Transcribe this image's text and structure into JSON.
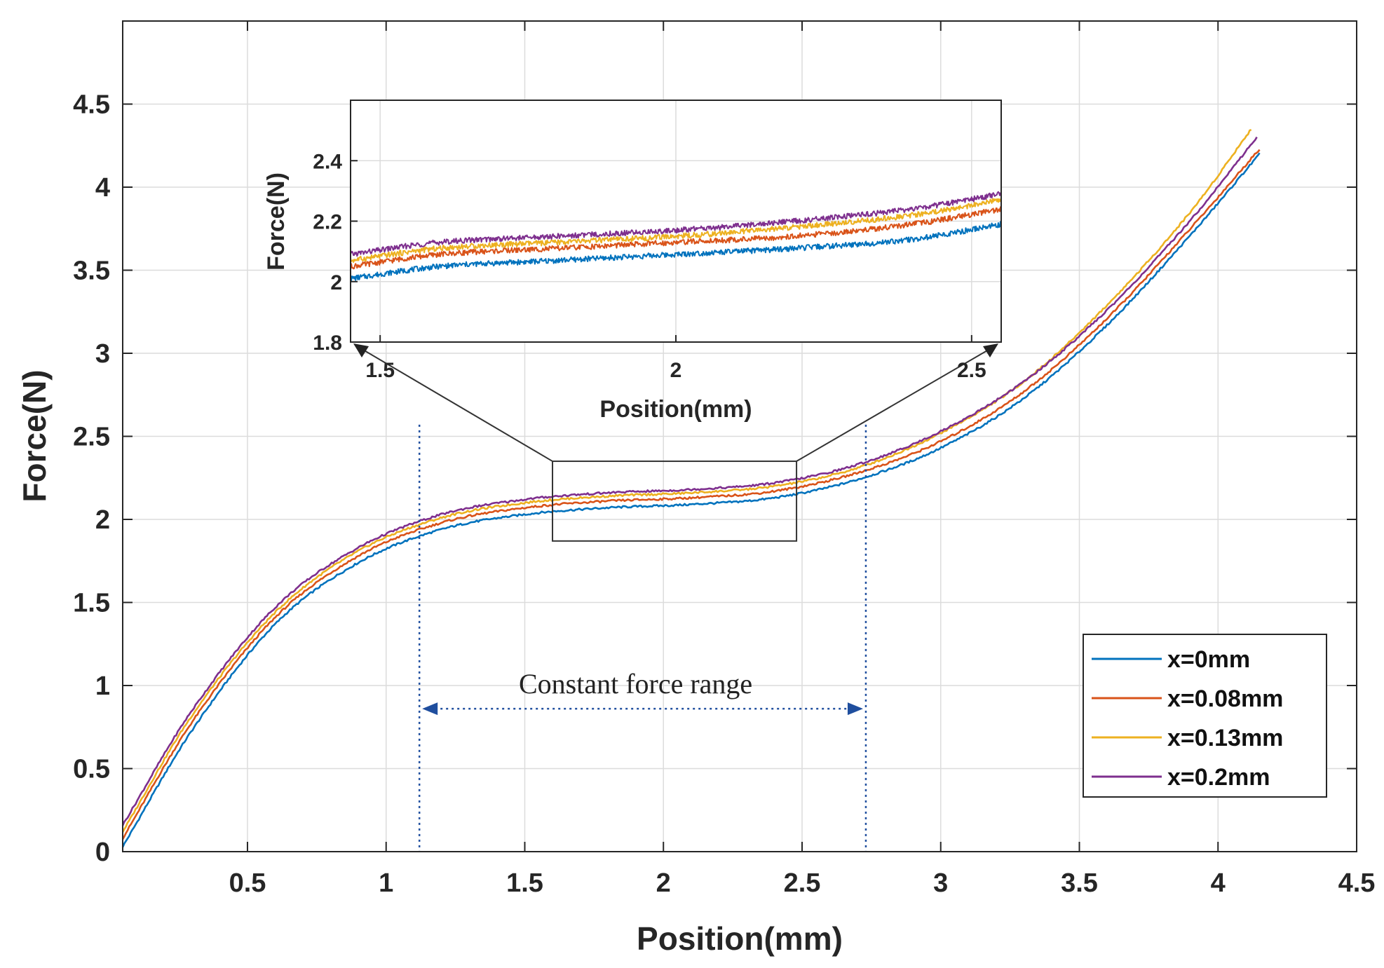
{
  "chart_data": {
    "type": "line",
    "title": "",
    "xlabel": "Position(mm)",
    "ylabel": "Force(N)",
    "xlim": [
      0.05,
      4.5
    ],
    "ylim": [
      0,
      5
    ],
    "xticks": [
      0.5,
      1,
      1.5,
      2,
      2.5,
      3,
      3.5,
      4,
      4.5
    ],
    "yticks": [
      0,
      0.5,
      1,
      1.5,
      2,
      2.5,
      3,
      3.5,
      4,
      4.5
    ],
    "xtick_labels": [
      "0.5",
      "1",
      "1.5",
      "2",
      "2.5",
      "3",
      "3.5",
      "4",
      "4.5"
    ],
    "ytick_labels": [
      "0",
      "0.5",
      "1",
      "1.5",
      "2",
      "2.5",
      "3",
      "3.5",
      "4",
      "4.5"
    ],
    "grid": true,
    "legend_position": "bottom-right",
    "series": [
      {
        "name": "x=0mm",
        "color": "#0072BD",
        "x": [
          0.05,
          0.3,
          0.6,
          0.9,
          1.2,
          1.5,
          1.8,
          2.1,
          2.4,
          2.7,
          3.0,
          3.3,
          3.6,
          3.9,
          4.15
        ],
        "y": [
          0.03,
          0.73,
          1.37,
          1.74,
          1.94,
          2.03,
          2.07,
          2.09,
          2.13,
          2.24,
          2.43,
          2.73,
          3.17,
          3.71,
          4.2
        ]
      },
      {
        "name": "x=0.08mm",
        "color": "#D95319",
        "x": [
          0.05,
          0.3,
          0.6,
          0.9,
          1.2,
          1.5,
          1.8,
          2.1,
          2.4,
          2.7,
          3.0,
          3.3,
          3.6,
          3.9,
          4.15
        ],
        "y": [
          0.08,
          0.78,
          1.41,
          1.78,
          1.98,
          2.07,
          2.11,
          2.13,
          2.17,
          2.28,
          2.47,
          2.77,
          3.21,
          3.75,
          4.23
        ]
      },
      {
        "name": "x=0.13mm",
        "color": "#EDB120",
        "x": [
          0.05,
          0.3,
          0.6,
          0.9,
          1.2,
          1.5,
          1.8,
          2.1,
          2.4,
          2.7,
          3.0,
          3.3,
          3.6,
          3.9,
          4.12
        ],
        "y": [
          0.12,
          0.82,
          1.44,
          1.81,
          2.01,
          2.1,
          2.14,
          2.16,
          2.2,
          2.31,
          2.52,
          2.83,
          3.29,
          3.85,
          4.35
        ]
      },
      {
        "name": "x=0.2mm",
        "color": "#7E2F8E",
        "x": [
          0.05,
          0.3,
          0.6,
          0.9,
          1.2,
          1.5,
          1.8,
          2.1,
          2.4,
          2.7,
          3.0,
          3.3,
          3.6,
          3.9,
          4.14
        ],
        "y": [
          0.16,
          0.85,
          1.47,
          1.83,
          2.03,
          2.12,
          2.16,
          2.18,
          2.22,
          2.33,
          2.53,
          2.83,
          3.26,
          3.8,
          4.3
        ]
      }
    ],
    "inset": {
      "xlabel": "Position(mm)",
      "ylabel": "Force(N)",
      "xlim": [
        1.45,
        2.55
      ],
      "ylim": [
        1.8,
        2.6
      ],
      "xticks": [
        1.5,
        2,
        2.5
      ],
      "yticks": [
        1.8,
        2,
        2.2,
        2.4
      ],
      "xtick_labels": [
        "1.5",
        "2",
        "2.5"
      ],
      "ytick_labels": [
        "1.8",
        "2",
        "2.2",
        "2.4"
      ],
      "series": [
        {
          "name": "x=0mm",
          "color": "#0072BD",
          "x": [
            1.45,
            1.6,
            1.8,
            2.0,
            2.2,
            2.4,
            2.55
          ],
          "y": [
            2.01,
            2.05,
            2.07,
            2.09,
            2.11,
            2.14,
            2.19
          ]
        },
        {
          "name": "x=0.08mm",
          "color": "#D95319",
          "x": [
            1.45,
            1.6,
            1.8,
            2.0,
            2.2,
            2.4,
            2.55
          ],
          "y": [
            2.05,
            2.09,
            2.11,
            2.13,
            2.15,
            2.19,
            2.24
          ]
        },
        {
          "name": "x=0.13mm",
          "color": "#EDB120",
          "x": [
            1.45,
            1.6,
            1.8,
            2.0,
            2.2,
            2.4,
            2.55
          ],
          "y": [
            2.07,
            2.11,
            2.13,
            2.15,
            2.18,
            2.22,
            2.27
          ]
        },
        {
          "name": "x=0.2mm",
          "color": "#7E2F8E",
          "x": [
            1.45,
            1.6,
            1.8,
            2.0,
            2.2,
            2.4,
            2.55
          ],
          "y": [
            2.09,
            2.13,
            2.15,
            2.17,
            2.2,
            2.24,
            2.29
          ]
        }
      ]
    },
    "zoom_region": {
      "x": [
        1.6,
        2.48
      ],
      "y": [
        1.87,
        2.35
      ]
    },
    "annotations": [
      {
        "text": "Constant force range",
        "x_start": 1.12,
        "x_end": 2.73,
        "y": 0.86,
        "guide_top": 2.57
      }
    ]
  }
}
